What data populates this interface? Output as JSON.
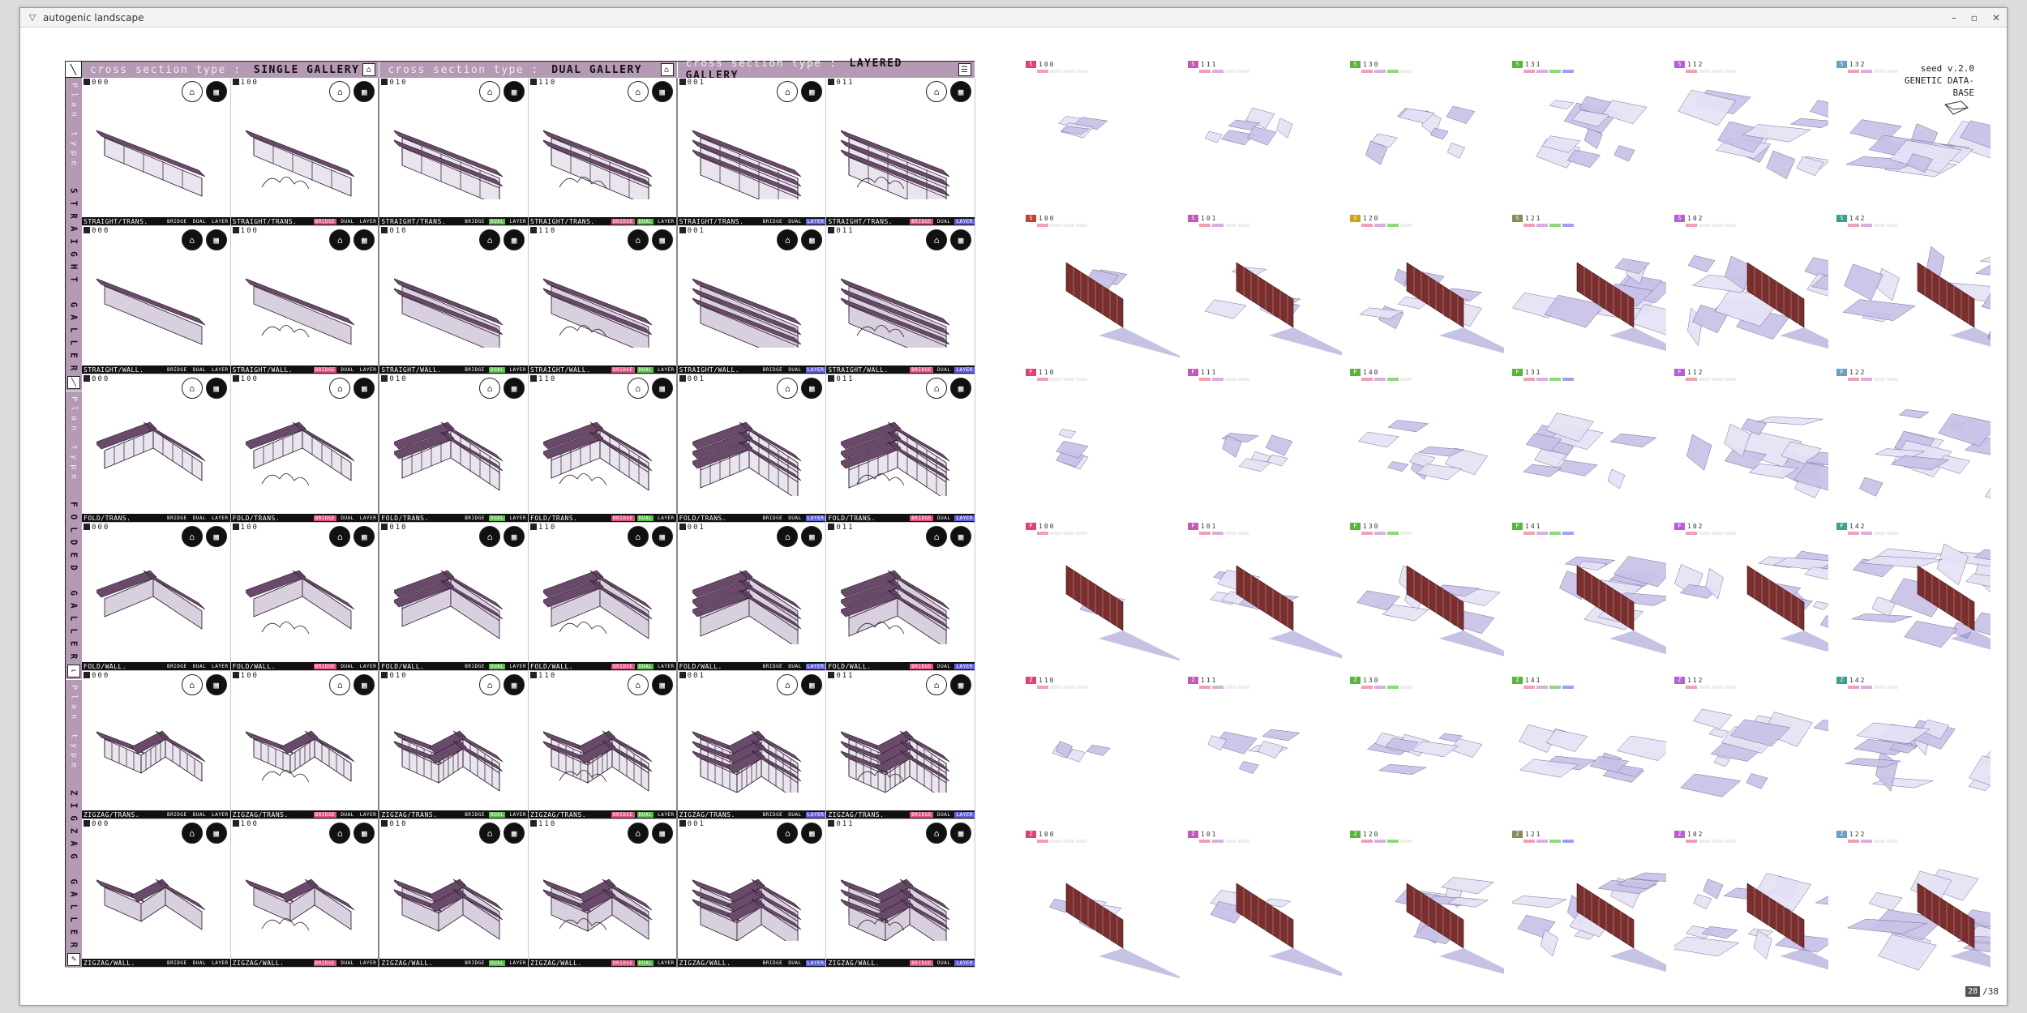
{
  "window": {
    "title": "autogenic landscape",
    "controls": [
      "–",
      "▫",
      "✕"
    ]
  },
  "catalog": {
    "headers": [
      {
        "prefix": "cross section type : ",
        "name": "SINGLE GALLERY",
        "icon": "single-gallery-icon"
      },
      {
        "prefix": "cross section type : ",
        "name": "DUAL GALLERY",
        "icon": "dual-gallery-icon"
      },
      {
        "prefix": "cross section type : ",
        "name": "LAYERED GALLERY",
        "icon": "layered-gallery-icon"
      }
    ],
    "plan_groups": [
      {
        "prefix": "Plan type",
        "name": "STRAIGHT GALLERY"
      },
      {
        "prefix": "Plan type",
        "name": "FOLDED GALLERY"
      },
      {
        "prefix": "Plan type",
        "name": "ZIGZAG GALLERY"
      }
    ],
    "tags": [
      "BRIDGE",
      "DUAL",
      "LAYER"
    ],
    "rows": [
      {
        "label": "STRAIGHT/TRANS.",
        "letter": "S",
        "badge": "light",
        "codes": [
          "000",
          "100",
          "010",
          "110",
          "001",
          "011"
        ]
      },
      {
        "label": "STRAIGHT/WALL.",
        "letter": "S",
        "badge": "dark",
        "codes": [
          "000",
          "100",
          "010",
          "110",
          "001",
          "011"
        ]
      },
      {
        "label": "FOLD/TRANS.",
        "letter": "F",
        "badge": "light",
        "codes": [
          "000",
          "100",
          "010",
          "110",
          "001",
          "011"
        ]
      },
      {
        "label": "FOLD/WALL.",
        "letter": "F",
        "badge": "dark",
        "codes": [
          "000",
          "100",
          "010",
          "110",
          "001",
          "011"
        ]
      },
      {
        "label": "ZIGZAG/TRANS.",
        "letter": "Z",
        "badge": "light",
        "codes": [
          "000",
          "100",
          "010",
          "110",
          "001",
          "011"
        ]
      },
      {
        "label": "ZIGZAG/WALL.",
        "letter": "Z",
        "badge": "dark",
        "codes": [
          "000",
          "100",
          "010",
          "110",
          "001",
          "011"
        ]
      }
    ]
  },
  "database": {
    "seed_lines": [
      "seed v.2.0",
      "GENETIC DATA-",
      "BASE"
    ],
    "rows": [
      {
        "letter": "S",
        "items": [
          {
            "code": "100",
            "color": "#e0407a"
          },
          {
            "code": "111",
            "color": "#c05ab5"
          },
          {
            "code": "130",
            "color": "#5ab53a"
          },
          {
            "code": "131",
            "color": "#5ab53a"
          },
          {
            "code": "112",
            "color": "#b85ed0"
          },
          {
            "code": "132",
            "color": "#6aa0c0"
          }
        ]
      },
      {
        "letter": "S",
        "items": [
          {
            "code": "100",
            "color": "#c0403a"
          },
          {
            "code": "101",
            "color": "#c05ab5"
          },
          {
            "code": "120",
            "color": "#d0a020"
          },
          {
            "code": "121",
            "color": "#8a8a5a"
          },
          {
            "code": "102",
            "color": "#b85ed0"
          },
          {
            "code": "142",
            "color": "#3aa090"
          }
        ]
      },
      {
        "letter": "F",
        "items": [
          {
            "code": "110",
            "color": "#e0407a"
          },
          {
            "code": "111",
            "color": "#c05ab5"
          },
          {
            "code": "140",
            "color": "#5ab53a"
          },
          {
            "code": "131",
            "color": "#5ab53a"
          },
          {
            "code": "112",
            "color": "#b85ed0"
          },
          {
            "code": "122",
            "color": "#6aa0c0"
          }
        ]
      },
      {
        "letter": "F",
        "items": [
          {
            "code": "100",
            "color": "#e0407a"
          },
          {
            "code": "101",
            "color": "#c05ab5"
          },
          {
            "code": "130",
            "color": "#5ab53a"
          },
          {
            "code": "141",
            "color": "#5ab53a"
          },
          {
            "code": "102",
            "color": "#b85ed0"
          },
          {
            "code": "142",
            "color": "#3aa090"
          }
        ]
      },
      {
        "letter": "Z",
        "items": [
          {
            "code": "110",
            "color": "#e0407a"
          },
          {
            "code": "111",
            "color": "#c05ab5"
          },
          {
            "code": "130",
            "color": "#5ab53a"
          },
          {
            "code": "141",
            "color": "#5ab53a"
          },
          {
            "code": "112",
            "color": "#b85ed0"
          },
          {
            "code": "142",
            "color": "#3aa090"
          }
        ]
      },
      {
        "letter": "Z",
        "items": [
          {
            "code": "100",
            "color": "#e0407a"
          },
          {
            "code": "101",
            "color": "#c05ab5"
          },
          {
            "code": "120",
            "color": "#5ab53a"
          },
          {
            "code": "121",
            "color": "#8a8a5a"
          },
          {
            "code": "102",
            "color": "#b85ed0"
          },
          {
            "code": "122",
            "color": "#6aa0c0"
          }
        ]
      }
    ],
    "swatch_colors": [
      "#f0a0b8",
      "#d8b0e0",
      "#90d880",
      "#a0a0f0"
    ]
  },
  "pager": {
    "current": "28",
    "total": "/38"
  },
  "colors": {
    "header_bg": "#b49ab5",
    "bar_bg": "#111111",
    "form_fill": "#c9c2e8",
    "wall": "#7a2f2f"
  }
}
